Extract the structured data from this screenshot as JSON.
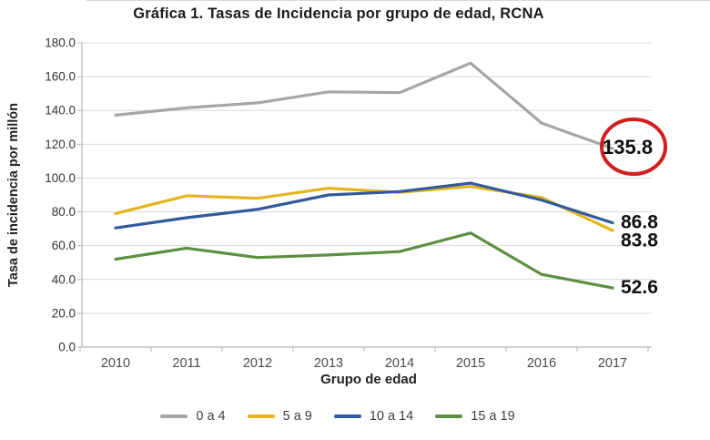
{
  "chart_data": {
    "type": "line",
    "title": "Gráfica 1. Tasas de Incidencia por grupo de edad, RCNA",
    "xlabel": "Grupo de edad",
    "ylabel": "Tasa de incidencia por millón",
    "categories": [
      "2010",
      "2011",
      "2012",
      "2013",
      "2014",
      "2015",
      "2016",
      "2017"
    ],
    "series": [
      {
        "name": "0 a 4",
        "color": "#a6a6a6",
        "values": [
          137.2,
          141.5,
          144.5,
          151.0,
          150.5,
          168.0,
          132.5,
          117.5
        ],
        "data_label": "135.8",
        "data_label_circled": true
      },
      {
        "name": "5 a 9",
        "color": "#e6b41f",
        "values": [
          79.0,
          89.5,
          88.0,
          94.0,
          91.5,
          95.0,
          88.5,
          69.0
        ],
        "data_label": "83.8",
        "data_label_circled": false
      },
      {
        "name": "10 a 14",
        "color": "#31599c",
        "values": [
          70.5,
          76.5,
          81.5,
          90.0,
          92.0,
          97.0,
          87.0,
          73.5
        ],
        "data_label": "86.8",
        "data_label_circled": false
      },
      {
        "name": "15 a 19",
        "color": "#5d8f41",
        "values": [
          52.0,
          58.5,
          53.0,
          54.5,
          56.5,
          67.5,
          43.0,
          35.0
        ],
        "data_label": "52.6",
        "data_label_circled": false
      }
    ],
    "ylim": [
      0,
      180
    ],
    "ytick_step": 20,
    "ytick_format_decimals": 1,
    "grid": true,
    "legend_position": "bottom",
    "highlight_circle_color": "#d01f1f",
    "gridline_color": "#d9d9d9",
    "axis_color": "#b3b3b3",
    "tick_label_color": "#333333",
    "category_label_color": "#4d4d4d",
    "data_label_color": "#111111"
  }
}
